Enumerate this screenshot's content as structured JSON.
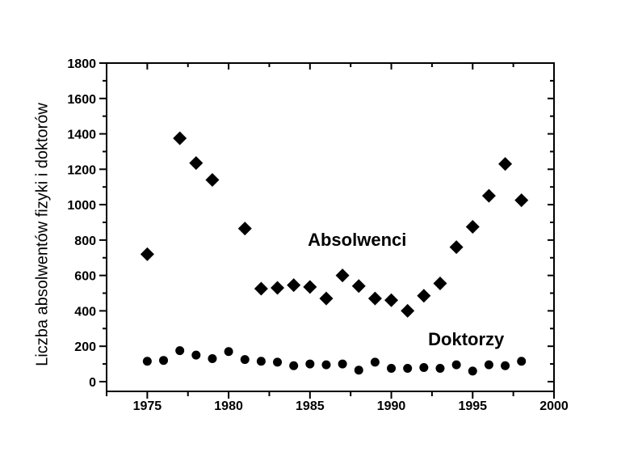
{
  "figure": {
    "background": "#ffffff",
    "foreground": "#000000"
  },
  "chart_data": {
    "type": "scatter",
    "title": "",
    "xlabel": "",
    "ylabel": "Liczba absolwentów fizyki i doktorów",
    "xlim": [
      1972.5,
      2000
    ],
    "ylim": [
      -55,
      1800
    ],
    "grid": false,
    "legend_position": "none",
    "x_major_ticks": [
      1975,
      1980,
      1985,
      1990,
      1995,
      2000
    ],
    "x_minor_ticks": [
      1972.5,
      1977.5,
      1982.5,
      1987.5,
      1992.5,
      1997.5
    ],
    "y_major_ticks": [
      0,
      200,
      400,
      600,
      800,
      1000,
      1200,
      1400,
      1600,
      1800
    ],
    "y_minor_ticks": [
      100,
      300,
      500,
      700,
      900,
      1100,
      1300,
      1500,
      1700
    ],
    "colors": {
      "marker": "#000000",
      "axis": "#000000",
      "background": "#ffffff"
    },
    "series": [
      {
        "name": "Absolwenci",
        "marker": "diamond",
        "points": [
          [
            1975,
            720
          ],
          [
            1977,
            1375
          ],
          [
            1978,
            1235
          ],
          [
            1979,
            1140
          ],
          [
            1981,
            865
          ],
          [
            1982,
            525
          ],
          [
            1983,
            530
          ],
          [
            1984,
            545
          ],
          [
            1985,
            535
          ],
          [
            1986,
            470
          ],
          [
            1987,
            600
          ],
          [
            1988,
            540
          ],
          [
            1989,
            470
          ],
          [
            1990,
            460
          ],
          [
            1991,
            400
          ],
          [
            1992,
            485
          ],
          [
            1993,
            555
          ],
          [
            1994,
            760
          ],
          [
            1995,
            875
          ],
          [
            1996,
            1050
          ],
          [
            1997,
            1230
          ],
          [
            1998,
            1025
          ]
        ]
      },
      {
        "name": "Doktorzy",
        "marker": "circle",
        "points": [
          [
            1975,
            115
          ],
          [
            1976,
            120
          ],
          [
            1977,
            175
          ],
          [
            1978,
            150
          ],
          [
            1979,
            130
          ],
          [
            1980,
            170
          ],
          [
            1981,
            125
          ],
          [
            1982,
            115
          ],
          [
            1983,
            110
          ],
          [
            1984,
            90
          ],
          [
            1985,
            100
          ],
          [
            1986,
            95
          ],
          [
            1987,
            100
          ],
          [
            1988,
            65
          ],
          [
            1989,
            110
          ],
          [
            1990,
            75
          ],
          [
            1991,
            75
          ],
          [
            1992,
            80
          ],
          [
            1993,
            75
          ],
          [
            1994,
            95
          ],
          [
            1995,
            60
          ],
          [
            1996,
            95
          ],
          [
            1997,
            90
          ],
          [
            1998,
            115
          ]
        ]
      }
    ],
    "annotations": [
      {
        "text": "Absolwenci",
        "x": 1987.9,
        "y": 800
      },
      {
        "text": "Doktorzy",
        "x": 1994.6,
        "y": 237
      }
    ]
  }
}
